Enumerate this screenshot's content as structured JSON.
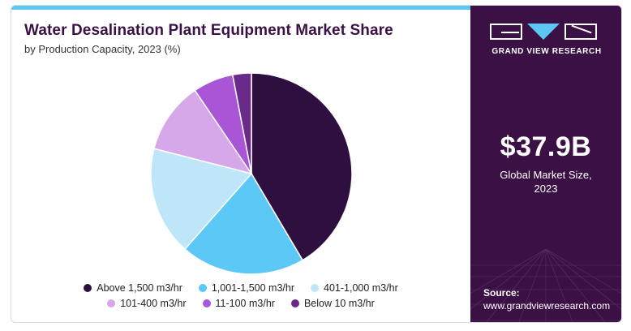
{
  "title": "Water Desalination Plant Equipment Market Share",
  "subtitle": "by Production Capacity, 2023 (%)",
  "brand": {
    "name": "GRAND VIEW RESEARCH"
  },
  "stat": {
    "value": "$37.9B",
    "label_line1": "Global Market Size,",
    "label_line2": "2023"
  },
  "source": {
    "label": "Source:",
    "url": "www.grandviewresearch.com"
  },
  "colors": {
    "panel": "#3b1044",
    "accent": "#5bc7f2",
    "title": "#3a1145"
  },
  "chart_data": {
    "type": "pie",
    "start_angle_deg": 0,
    "direction": "clockwise",
    "legend_position": "bottom",
    "slices": [
      {
        "label": "Above 1,500 m3/hr",
        "value": 41.5,
        "color": "#2f0f3f"
      },
      {
        "label": "1,001-1,500 m3/hr",
        "value": 20.0,
        "color": "#5bc8f5"
      },
      {
        "label": "401-1,000 m3/hr",
        "value": 17.5,
        "color": "#bfe6f8"
      },
      {
        "label": "101-400 m3/hr",
        "value": 11.5,
        "color": "#d6a8ea"
      },
      {
        "label": "11-100 m3/hr",
        "value": 6.5,
        "color": "#a855d6"
      },
      {
        "label": "Below 10 m3/hr",
        "value": 3.0,
        "color": "#6a2a8a"
      }
    ]
  }
}
